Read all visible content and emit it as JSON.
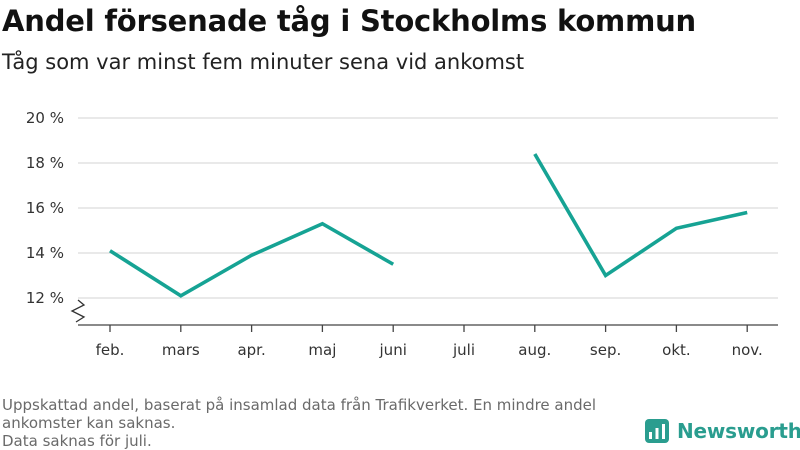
{
  "title": "Andel försenade tåg i Stockholms kommun",
  "subtitle": "Tåg som var minst fem minuter sena vid ankomst",
  "footnote": {
    "line1": "Uppskattad andel, baserat på insamlad data från Trafikverket. En mindre andel ankomster kan saknas.",
    "line2": "Data saknas för juli."
  },
  "brand": {
    "name": "Newsworthy",
    "icon": "bar-chart-logo-icon",
    "color": "#2a9d8f"
  },
  "chart_data": {
    "type": "line",
    "categories": [
      "feb.",
      "mars",
      "apr.",
      "maj",
      "juni",
      "juli",
      "aug.",
      "sep.",
      "okt.",
      "nov."
    ],
    "series": [
      {
        "values": [
          14.1,
          12.1,
          13.9,
          15.3,
          13.5,
          null,
          18.4,
          13.0,
          15.1,
          15.8
        ]
      }
    ],
    "y_ticks": [
      12,
      14,
      16,
      18,
      20
    ],
    "y_tick_labels": [
      "12 %",
      "14 %",
      "16 %",
      "18 %",
      "20 %"
    ],
    "ylim": [
      10.8,
      20
    ],
    "axis_break": true,
    "grid": true,
    "line_color": "#16a394",
    "xlabel": "",
    "ylabel": ""
  }
}
